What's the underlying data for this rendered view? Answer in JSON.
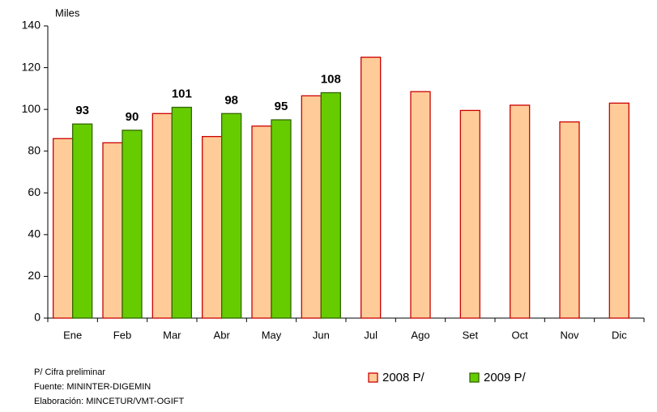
{
  "chart_data": {
    "type": "bar",
    "y_label": "Miles",
    "categories": [
      "Ene",
      "Feb",
      "Mar",
      "Abr",
      "May",
      "Jun",
      "Jul",
      "Ago",
      "Set",
      "Oct",
      "Nov",
      "Dic"
    ],
    "series": [
      {
        "name": "2008 P/",
        "color": "#ffcc99",
        "edge_color": "#cc0000",
        "values": [
          86,
          84,
          98,
          87,
          92,
          106.5,
          125,
          108.5,
          99.5,
          102,
          94,
          103
        ]
      },
      {
        "name": "2009 P/",
        "color": "#66cc00",
        "edge_color": "#336600",
        "values": [
          93,
          90,
          101,
          98,
          95,
          108,
          null,
          null,
          null,
          null,
          null,
          null
        ],
        "data_labels": true
      }
    ],
    "ylim": [
      0,
      140
    ],
    "yticks": [
      0,
      20,
      40,
      60,
      80,
      100,
      120,
      140
    ],
    "notes": [
      "P/ Cifra preliminar",
      "Fuente: MININTER-DIGEMIN",
      "Elaboración: MINCETUR/VMT-OGIFT"
    ]
  }
}
